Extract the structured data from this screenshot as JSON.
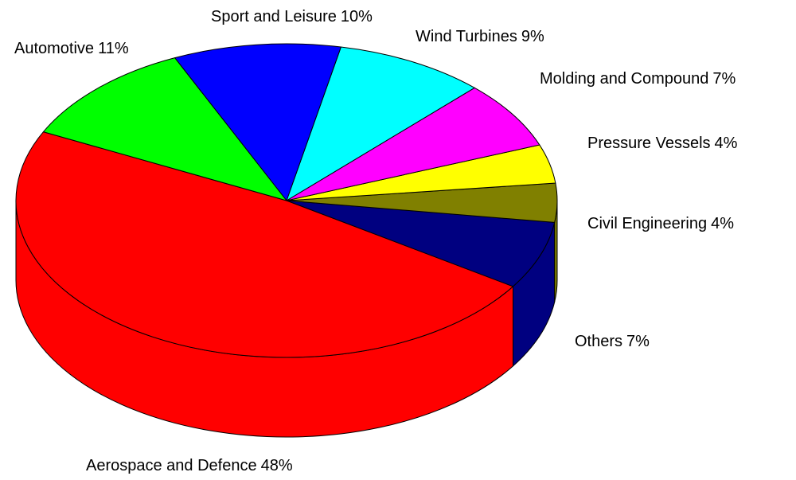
{
  "chart_data": {
    "type": "pie3d",
    "categories": [
      "Aerospace and Defence",
      "Others",
      "Civil Engineering",
      "Pressure Vessels",
      "Molding and Compound",
      "Wind Turbines",
      "Sport and Leisure",
      "Automotive"
    ],
    "values": [
      48,
      7,
      4,
      4,
      7,
      9,
      10,
      11
    ],
    "value_labels": [
      "48%",
      "7%",
      "4%",
      "4%",
      "7%",
      "9%",
      "10%",
      "11%"
    ],
    "colors": [
      "#ff0000",
      "#000080",
      "#808000",
      "#ffff00",
      "#ff00ff",
      "#00ffff",
      "#0000ff",
      "#00ff00"
    ]
  }
}
